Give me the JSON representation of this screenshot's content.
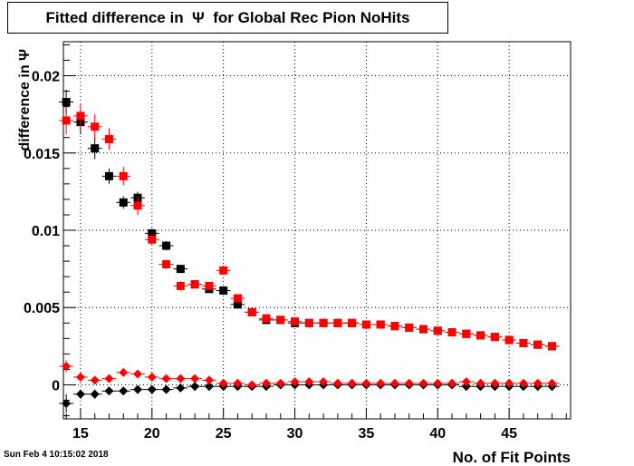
{
  "page": {
    "title": "Fitted difference in  Ψ  for Global Rec Pion NoHits",
    "date": "Sun Feb  4 10:15:02 2018"
  },
  "chart_data": {
    "type": "scatter",
    "title": "Fitted difference in  Ψ  for Global Rec Pion NoHits",
    "xlabel": "No. of Fit Points",
    "ylabel": "difference in  Ψ",
    "xlim": [
      13.8,
      49.3
    ],
    "ylim": [
      -0.0022,
      0.0222
    ],
    "x_ticks": [
      15,
      20,
      25,
      30,
      35,
      40,
      45
    ],
    "y_ticks": [
      0,
      0.005,
      0.01,
      0.015,
      0.02
    ],
    "y_tick_labels": [
      "0",
      "0.005",
      "0.01",
      "0.015",
      "0.02"
    ],
    "grid": true,
    "series": [
      {
        "marker": "square",
        "color": "#000000",
        "x": [
          14,
          15,
          16,
          17,
          18,
          19,
          20,
          21,
          22,
          23,
          24,
          25,
          26,
          27,
          28,
          29,
          30,
          31,
          32,
          33,
          34,
          35,
          36,
          37,
          38,
          39,
          40,
          41,
          42,
          43,
          44,
          45,
          46,
          47,
          48
        ],
        "y": [
          0.0183,
          0.017,
          0.0153,
          0.0135,
          0.0118,
          0.0121,
          0.0098,
          0.009,
          0.0075,
          0.0065,
          0.0062,
          0.0061,
          0.0052,
          0.0047,
          0.0042,
          0.0042,
          0.004,
          0.004,
          0.004,
          0.004,
          0.004,
          0.0039,
          0.0039,
          0.0038,
          0.0037,
          0.0036,
          0.0035,
          0.0034,
          0.0033,
          0.0032,
          0.0031,
          0.0029,
          0.0027,
          0.0026,
          0.0025
        ],
        "yerr": [
          0.0008,
          0.0008,
          0.0007,
          0.0005,
          0.0004,
          0.0004,
          0.0003,
          0.0003,
          0.0002,
          0.0002,
          0.0002,
          0.0002,
          0.0001,
          0.0001,
          0.0001,
          0.0001,
          0.0001,
          0.0001,
          0.0001,
          0.0001,
          0.0001,
          0.0001,
          0.0001,
          0.0001,
          0.0001,
          0.0001,
          0.0001,
          0.0001,
          0.0001,
          0.0001,
          0.0001,
          0.0001,
          0.0001,
          0.0001,
          0.0001
        ]
      },
      {
        "marker": "square",
        "color": "#ff0000",
        "x": [
          14,
          15,
          16,
          17,
          18,
          19,
          20,
          21,
          22,
          23,
          24,
          25,
          26,
          27,
          28,
          29,
          30,
          31,
          32,
          33,
          34,
          35,
          36,
          37,
          38,
          39,
          40,
          41,
          42,
          43,
          44,
          45,
          46,
          47,
          48
        ],
        "y": [
          0.0171,
          0.0174,
          0.0167,
          0.0159,
          0.0135,
          0.0116,
          0.0094,
          0.0078,
          0.0064,
          0.0065,
          0.0064,
          0.0074,
          0.0056,
          0.0047,
          0.0043,
          0.0042,
          0.0041,
          0.004,
          0.004,
          0.004,
          0.004,
          0.0039,
          0.0039,
          0.0038,
          0.0037,
          0.0036,
          0.0035,
          0.0034,
          0.0033,
          0.0032,
          0.0031,
          0.0029,
          0.0027,
          0.0026,
          0.0025
        ],
        "yerr": [
          0.0009,
          0.0008,
          0.0008,
          0.0007,
          0.0006,
          0.0006,
          0.0004,
          0.0003,
          0.0003,
          0.0002,
          0.0002,
          0.0003,
          0.0002,
          0.0001,
          0.0001,
          0.0001,
          0.0001,
          0.0001,
          0.0001,
          0.0001,
          0.0001,
          0.0001,
          0.0001,
          0.0001,
          0.0001,
          0.0001,
          0.0001,
          0.0001,
          0.0001,
          0.0001,
          0.0001,
          0.0001,
          0.0001,
          0.0001,
          0.0001
        ]
      },
      {
        "marker": "diamond",
        "color": "#000000",
        "x": [
          14,
          15,
          16,
          17,
          18,
          19,
          20,
          21,
          22,
          23,
          24,
          25,
          26,
          27,
          28,
          29,
          30,
          31,
          32,
          33,
          34,
          35,
          36,
          37,
          38,
          39,
          40,
          41,
          42,
          43,
          44,
          45,
          46,
          47,
          48
        ],
        "y": [
          -0.0012,
          -0.0006,
          -0.0006,
          -0.0004,
          -0.0004,
          -0.0003,
          -0.0003,
          -0.0003,
          -0.0002,
          -0.0001,
          -0.0001,
          -0.0001,
          -0.0001,
          -0.0001,
          -0.0001,
          0.0,
          0.0,
          0.0,
          0.0,
          0.0,
          0.0,
          0.0,
          0.0,
          0.0,
          0.0,
          0.0,
          0.0,
          0.0,
          -0.0001,
          -0.0001,
          -0.0001,
          -0.0001,
          -0.0001,
          -0.0001,
          -0.0001
        ],
        "yerr": [
          0.0006,
          0.0003,
          0.0003,
          0.0002,
          0.0002,
          0.0002,
          0.0002,
          0.0001,
          0.0001,
          0.0001,
          0.0001,
          0.0001,
          0.0001,
          0.0001,
          0.0001,
          0.0001,
          0.0001,
          0.0001,
          0.0001,
          0.0001,
          0.0001,
          0.0001,
          0.0001,
          0.0001,
          0.0001,
          0.0001,
          0.0001,
          0.0001,
          0.0001,
          0.0001,
          0.0001,
          0.0001,
          0.0001,
          0.0001,
          0.0001
        ]
      },
      {
        "marker": "diamond",
        "color": "#ff0000",
        "x": [
          14,
          15,
          16,
          17,
          18,
          19,
          20,
          21,
          22,
          23,
          24,
          25,
          26,
          27,
          28,
          29,
          30,
          31,
          32,
          33,
          34,
          35,
          36,
          37,
          38,
          39,
          40,
          41,
          42,
          43,
          44,
          45,
          46,
          47,
          48
        ],
        "y": [
          0.0012,
          0.0005,
          0.0003,
          0.0004,
          0.0008,
          0.0007,
          0.0005,
          0.0004,
          0.0004,
          0.0004,
          0.0003,
          0.0001,
          0.0001,
          0.0,
          0.0001,
          0.0001,
          0.0002,
          0.0002,
          0.0002,
          0.0001,
          0.0001,
          0.0001,
          0.0001,
          0.0001,
          0.0001,
          0.0001,
          0.0001,
          0.0001,
          0.0002,
          0.0001,
          0.0001,
          0.0001,
          0.0001,
          0.0001,
          0.0001
        ],
        "yerr": [
          0.0004,
          0.0003,
          0.0002,
          0.0002,
          0.0002,
          0.0002,
          0.0002,
          0.0001,
          0.0001,
          0.0001,
          0.0001,
          0.0001,
          0.0001,
          0.0001,
          0.0001,
          0.0001,
          0.0001,
          0.0001,
          0.0001,
          0.0001,
          0.0001,
          0.0001,
          0.0001,
          0.0001,
          0.0001,
          0.0001,
          0.0001,
          0.0001,
          0.0001,
          0.0001,
          0.0001,
          0.0001,
          0.0001,
          0.0001,
          0.0001
        ]
      }
    ]
  }
}
